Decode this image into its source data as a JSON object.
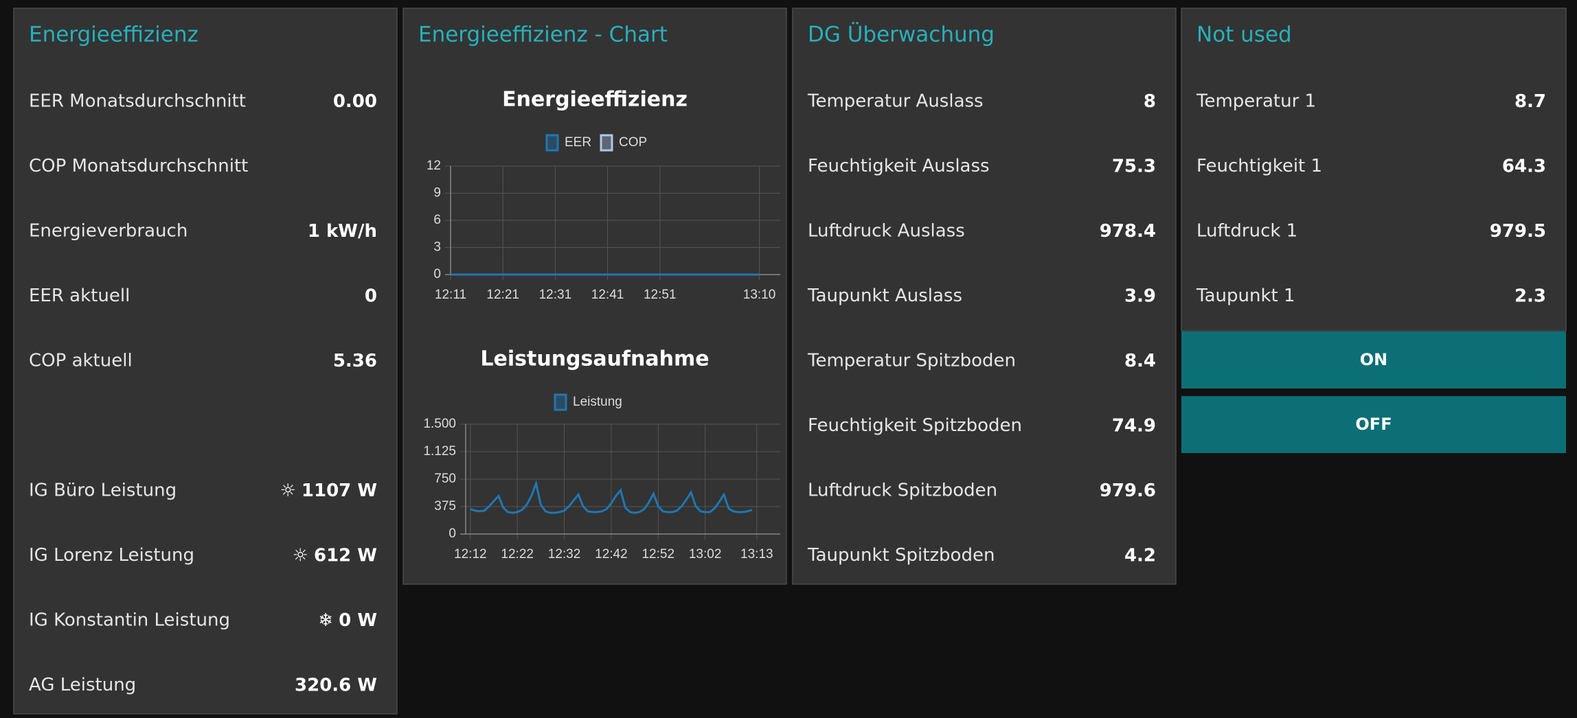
{
  "panels": [
    {
      "title": "Energieeffizienz",
      "rows": [
        {
          "label": "EER Monatsdurchschnitt",
          "value": "0.00"
        },
        {
          "label": "COP Monatsdurchschnitt"
        },
        {
          "label": "Energieverbrauch",
          "value": "1 kW/h"
        },
        {
          "label": "EER aktuell",
          "value": "0"
        },
        {
          "label": "COP aktuell",
          "value": "5.36"
        },
        {
          "label": "IG Büro Leistung",
          "icon": "☼",
          "value": "1107 W"
        },
        {
          "label": "IG Lorenz Leistung",
          "icon": "☼",
          "value": "612 W"
        },
        {
          "label": "IG Konstantin Leistung",
          "icon": "❄",
          "value": "0 W"
        },
        {
          "label": "AG Leistung",
          "value": "320.6 W"
        }
      ]
    },
    {
      "title": "Energieeffizienz - Chart",
      "charts": [
        {
          "type": "line",
          "title": "Energieeffizienz",
          "x": [
            731,
            790
          ],
          "series": [
            {
              "name": "EER",
              "color": "#1f77b4",
              "values": [
                0,
                0
              ]
            },
            {
              "name": "COP",
              "color": "#aec7e8",
              "values": [
                null,
                null
              ]
            }
          ],
          "xlim": [
            731,
            794
          ],
          "xticks": [
            {
              "value": 731,
              "label": "12:11"
            },
            {
              "value": 741,
              "label": "12:21"
            },
            {
              "value": 751,
              "label": "12:31"
            },
            {
              "value": 761,
              "label": "12:41"
            },
            {
              "value": 771,
              "label": "12:51"
            },
            {
              "value": 790,
              "label": "13:10"
            }
          ],
          "ylim": [
            0,
            12
          ],
          "yticks": [
            0,
            3,
            6,
            9,
            12
          ],
          "grid": true
        },
        {
          "type": "line",
          "title": "Leistungsaufnahme",
          "x": [
            732,
            733,
            734,
            735,
            736,
            737,
            738,
            739,
            740,
            741,
            742,
            743,
            744,
            745,
            746,
            747,
            748,
            749,
            750,
            751,
            752,
            753,
            754,
            755,
            756,
            757,
            758,
            759,
            760,
            761,
            762,
            763,
            764,
            765,
            766,
            767,
            768,
            769,
            770,
            771,
            772,
            773,
            774,
            775,
            776,
            777,
            778,
            779,
            780,
            781,
            782,
            783,
            784,
            785,
            786,
            787,
            788,
            789,
            790,
            791,
            792
          ],
          "series": [
            {
              "name": "Leistung",
              "color": "#1f77b4",
              "values": [
                340,
                320,
                310,
                320,
                380,
                450,
                520,
                360,
                300,
                290,
                300,
                330,
                400,
                520,
                690,
                400,
                310,
                290,
                290,
                300,
                320,
                380,
                460,
                540,
                380,
                310,
                300,
                300,
                310,
                340,
                420,
                520,
                600,
                360,
                300,
                290,
                300,
                340,
                430,
                550,
                380,
                310,
                300,
                300,
                320,
                380,
                470,
                570,
                380,
                310,
                300,
                300,
                350,
                440,
                540,
                350,
                310,
                300,
                300,
                310,
                330
              ]
            }
          ],
          "xlim": [
            731,
            798
          ],
          "xticks": [
            {
              "value": 732,
              "label": "12:12"
            },
            {
              "value": 742,
              "label": "12:22"
            },
            {
              "value": 752,
              "label": "12:32"
            },
            {
              "value": 762,
              "label": "12:42"
            },
            {
              "value": 772,
              "label": "12:52"
            },
            {
              "value": 782,
              "label": "13:02"
            },
            {
              "value": 793,
              "label": "13:13"
            }
          ],
          "ylim": [
            0,
            1500
          ],
          "yticks": [
            0,
            375,
            750,
            {
              "value": 1125,
              "label": "1.125"
            },
            {
              "value": 1500,
              "label": "1.500"
            }
          ],
          "grid": true
        }
      ]
    },
    {
      "title": "DG Überwachung",
      "rows": [
        {
          "label": "Temperatur Auslass",
          "value": "8"
        },
        {
          "label": "Feuchtigkeit Auslass",
          "value": "75.3"
        },
        {
          "label": "Luftdruck Auslass",
          "value": "978.4"
        },
        {
          "label": "Taupunkt Auslass",
          "value": "3.9"
        },
        {
          "label": "Temperatur Spitzboden",
          "value": "8.4"
        },
        {
          "label": "Feuchtigkeit Spitzboden",
          "value": "74.9"
        },
        {
          "label": "Luftdruck Spitzboden",
          "value": "979.6"
        },
        {
          "label": "Taupunkt Spitzboden",
          "value": "4.2"
        }
      ]
    },
    {
      "title": "Not used",
      "rows": [
        {
          "label": "Temperatur 1",
          "value": "8.7"
        },
        {
          "label": "Feuchtigkeit 1",
          "value": "64.3"
        },
        {
          "label": "Luftdruck 1",
          "value": "979.5"
        },
        {
          "label": "Taupunkt 1",
          "value": "2.3"
        }
      ],
      "buttons": [
        "ON",
        "OFF"
      ]
    }
  ]
}
